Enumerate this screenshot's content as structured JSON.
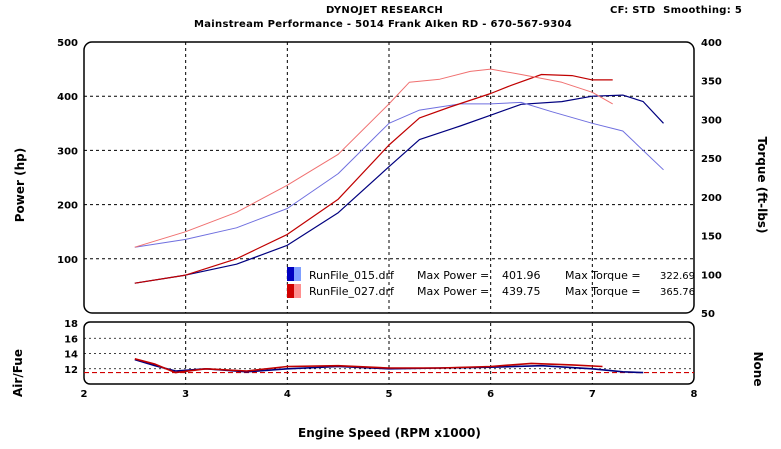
{
  "header": {
    "title": "DYNOJET RESEARCH",
    "subtitle": "Mainstream Performance - 5014 Frank AIken RD - 670-567-9304",
    "settings": "CF: STD  Smoothing: 5"
  },
  "colors": {
    "run1_dark": "#00007f",
    "run1_light": "#6f6fdf",
    "run2_dark": "#c00000",
    "run2_light": "#f07070",
    "afr_target": "#d00000"
  },
  "chart_data": [
    {
      "type": "line",
      "panel": "main",
      "xlabel": "Engine Speed (RPM x1000)",
      "ylabel_left": "Power (hp)",
      "ylabel_right": "Torque (ft-lbs)",
      "xlim": [
        2,
        8
      ],
      "ylim_left": [
        0,
        500
      ],
      "ylim_right": [
        50,
        400
      ],
      "x_ticks": [
        "2",
        "3",
        "4",
        "5",
        "6",
        "7",
        "8"
      ],
      "y_ticks_left": [
        "100",
        "200",
        "300",
        "400",
        "500"
      ],
      "y_ticks_right": [
        "50",
        "100",
        "150",
        "200",
        "250",
        "300",
        "350",
        "400"
      ],
      "legend": [
        {
          "file": "RunFile_015.drf",
          "max_power_label": "Max Power =",
          "max_power": "401.96",
          "max_torque_label": "Max Torque =",
          "max_torque": "322.69"
        },
        {
          "file": "RunFile_027.drf",
          "max_power_label": "Max Power =",
          "max_power": "439.75",
          "max_torque_label": "Max Torque =",
          "max_torque": "365.76"
        }
      ],
      "series": [
        {
          "run": "RunFile_015",
          "measure": "power",
          "axis": "left",
          "x": [
            2.5,
            3.0,
            3.5,
            4.0,
            4.5,
            5.0,
            5.3,
            5.7,
            6.0,
            6.3,
            6.7,
            7.0,
            7.3,
            7.5,
            7.7
          ],
          "y": [
            55,
            70,
            90,
            125,
            185,
            270,
            320,
            345,
            365,
            385,
            390,
            400,
            402,
            390,
            350
          ]
        },
        {
          "run": "RunFile_015",
          "measure": "torque",
          "axis": "right",
          "x": [
            2.5,
            3.0,
            3.5,
            4.0,
            4.5,
            5.0,
            5.3,
            5.7,
            6.0,
            6.3,
            6.6,
            7.0,
            7.3,
            7.7
          ],
          "y": [
            135,
            145,
            160,
            185,
            230,
            295,
            312,
            320,
            320,
            322,
            310,
            295,
            285,
            235
          ]
        },
        {
          "run": "RunFile_027",
          "measure": "power",
          "axis": "left",
          "x": [
            2.5,
            3.0,
            3.5,
            4.0,
            4.5,
            5.0,
            5.3,
            5.6,
            6.0,
            6.2,
            6.5,
            6.8,
            7.0,
            7.2
          ],
          "y": [
            55,
            70,
            100,
            145,
            210,
            310,
            360,
            380,
            405,
            420,
            440,
            438,
            430,
            430
          ]
        },
        {
          "run": "RunFile_027",
          "measure": "torque",
          "axis": "right",
          "x": [
            2.5,
            3.0,
            3.5,
            4.0,
            4.5,
            5.0,
            5.2,
            5.5,
            5.8,
            6.0,
            6.3,
            6.7,
            7.0,
            7.2
          ],
          "y": [
            135,
            155,
            180,
            215,
            255,
            320,
            348,
            352,
            362,
            365,
            358,
            348,
            335,
            320
          ]
        }
      ]
    },
    {
      "type": "line",
      "panel": "air_fuel",
      "ylabel_left": "Air/Fue",
      "ylabel_right": "None",
      "xlim": [
        2,
        8
      ],
      "ylim": [
        10,
        18
      ],
      "x_ticks": [
        "2",
        "3",
        "4",
        "5",
        "6",
        "7",
        "8"
      ],
      "y_ticks": [
        "12",
        "14",
        "16",
        "18"
      ],
      "target": 11.5,
      "series": [
        {
          "run": "RunFile_015",
          "x": [
            2.5,
            2.7,
            2.9,
            3.2,
            3.6,
            4.0,
            4.5,
            5.0,
            5.5,
            6.0,
            6.5,
            7.0,
            7.3,
            7.5
          ],
          "y": [
            13.2,
            12.4,
            11.7,
            12.0,
            11.6,
            12.0,
            12.3,
            12.0,
            12.1,
            12.2,
            12.4,
            12.0,
            11.6,
            11.5
          ]
        },
        {
          "run": "RunFile_027",
          "x": [
            2.5,
            2.7,
            2.9,
            3.2,
            3.6,
            4.0,
            4.5,
            5.0,
            5.5,
            6.0,
            6.4,
            6.8,
            7.1
          ],
          "y": [
            13.3,
            12.6,
            11.5,
            12.0,
            11.7,
            12.3,
            12.4,
            12.1,
            12.1,
            12.3,
            12.7,
            12.5,
            12.3
          ]
        }
      ]
    }
  ]
}
